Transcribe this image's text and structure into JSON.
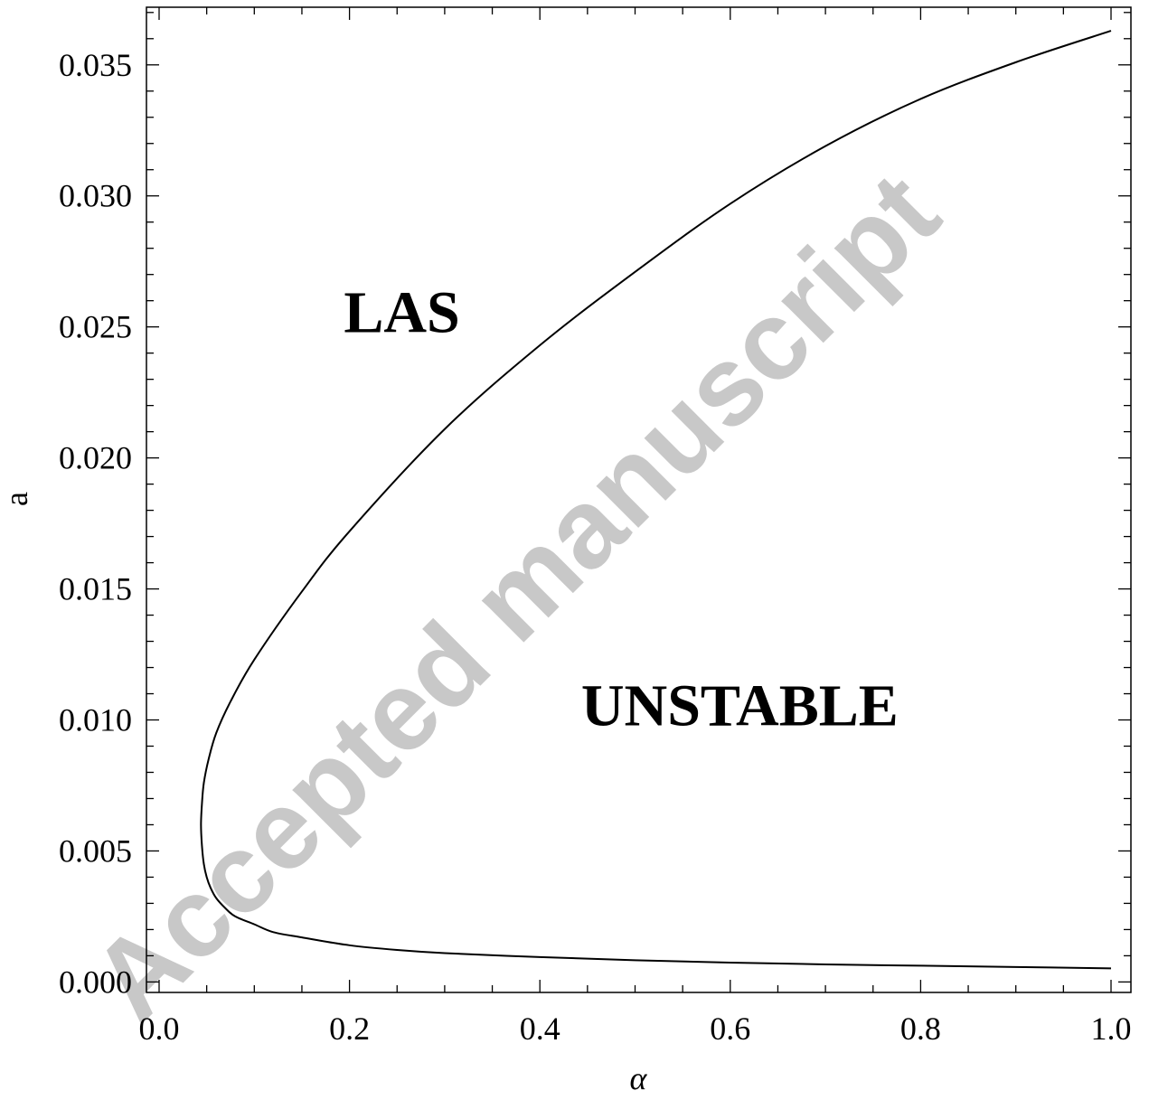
{
  "watermark": {
    "text": "Accepted manuscript",
    "color": "#c8c8c8"
  },
  "chart_data": {
    "type": "line",
    "xlabel": "α",
    "ylabel": "a",
    "xlim": [
      0.0,
      1.0
    ],
    "ylim": [
      0.0,
      0.037
    ],
    "x_ticks": [
      "0.0",
      "0.2",
      "0.4",
      "0.6",
      "0.8",
      "1.0"
    ],
    "x_tick_values": [
      0.0,
      0.2,
      0.4,
      0.6,
      0.8,
      1.0
    ],
    "y_ticks": [
      "0.000",
      "0.005",
      "0.010",
      "0.015",
      "0.020",
      "0.025",
      "0.030",
      "0.035"
    ],
    "y_tick_values": [
      0.0,
      0.005,
      0.01,
      0.015,
      0.02,
      0.025,
      0.03,
      0.035
    ],
    "grid": false,
    "region_labels": [
      {
        "text": "LAS",
        "x": 0.255,
        "y": 0.0248
      },
      {
        "text": "UNSTABLE",
        "x": 0.61,
        "y": 0.0098
      }
    ],
    "series": [
      {
        "color": "#000000",
        "points": [
          [
            1.0,
            0.00052
          ],
          [
            0.9,
            0.00057
          ],
          [
            0.8,
            0.00062
          ],
          [
            0.7,
            0.00067
          ],
          [
            0.6,
            0.00074
          ],
          [
            0.5,
            0.00083
          ],
          [
            0.4,
            0.00095
          ],
          [
            0.3,
            0.0011
          ],
          [
            0.25,
            0.00122
          ],
          [
            0.2,
            0.0014
          ],
          [
            0.15,
            0.0017
          ],
          [
            0.12,
            0.0019
          ],
          [
            0.1,
            0.0022
          ],
          [
            0.08,
            0.0025
          ],
          [
            0.07,
            0.0028
          ],
          [
            0.06,
            0.0032
          ],
          [
            0.054,
            0.0036
          ],
          [
            0.05,
            0.004
          ],
          [
            0.047,
            0.0045
          ],
          [
            0.045,
            0.0052
          ],
          [
            0.044,
            0.006
          ],
          [
            0.045,
            0.0068
          ],
          [
            0.047,
            0.0076
          ],
          [
            0.052,
            0.0085
          ],
          [
            0.06,
            0.0095
          ],
          [
            0.075,
            0.0107
          ],
          [
            0.1,
            0.0123
          ],
          [
            0.15,
            0.0149
          ],
          [
            0.2,
            0.0172
          ],
          [
            0.3,
            0.0211
          ],
          [
            0.4,
            0.0243
          ],
          [
            0.5,
            0.0271
          ],
          [
            0.6,
            0.0297
          ],
          [
            0.7,
            0.0319
          ],
          [
            0.8,
            0.0337
          ],
          [
            0.9,
            0.0351
          ],
          [
            1.0,
            0.0363
          ]
        ]
      }
    ]
  }
}
